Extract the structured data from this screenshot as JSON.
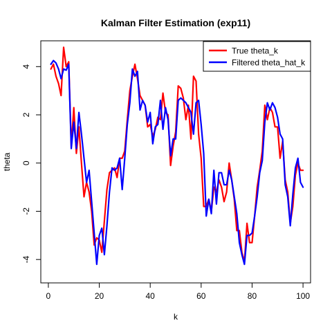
{
  "chart_data": {
    "type": "line",
    "title": "Kalman Filter Estimation (exp11)",
    "xlabel": "k",
    "ylabel": "theta",
    "xlim": [
      -2.96,
      102.96
    ],
    "ylim": [
      -4.97,
      5.07
    ],
    "x_ticks": [
      0,
      20,
      40,
      60,
      80,
      100
    ],
    "x_tick_labels": [
      "0",
      "20",
      "40",
      "60",
      "80",
      "100"
    ],
    "y_ticks": [
      -4,
      -2,
      0,
      2,
      4
    ],
    "y_tick_labels": [
      "-4",
      "-2",
      "0",
      "2",
      "4"
    ],
    "legend_position": "top-right",
    "grid": false,
    "x": [
      1,
      2,
      3,
      4,
      5,
      6,
      7,
      8,
      9,
      10,
      11,
      12,
      13,
      14,
      15,
      16,
      17,
      18,
      19,
      20,
      21,
      22,
      23,
      24,
      25,
      26,
      27,
      28,
      29,
      30,
      31,
      32,
      33,
      34,
      35,
      36,
      37,
      38,
      39,
      40,
      41,
      42,
      43,
      44,
      45,
      46,
      47,
      48,
      49,
      50,
      51,
      52,
      53,
      54,
      55,
      56,
      57,
      58,
      59,
      60,
      61,
      62,
      63,
      64,
      65,
      66,
      67,
      68,
      69,
      70,
      71,
      72,
      73,
      74,
      75,
      76,
      77,
      78,
      79,
      80,
      81,
      82,
      83,
      84,
      85,
      86,
      87,
      88,
      89,
      90,
      91,
      92,
      93,
      94,
      95,
      96,
      97,
      98,
      99,
      100
    ],
    "series": [
      {
        "name": "True theta_k",
        "color": "#ff0000",
        "values": [
          3.9,
          4.1,
          3.6,
          3.3,
          2.8,
          4.8,
          4.0,
          4.2,
          0.7,
          2.3,
          0.4,
          1.5,
          0.0,
          -1.4,
          -0.8,
          -1.2,
          -2.0,
          -3.4,
          -3.1,
          -3.2,
          -3.7,
          -2.4,
          -1.1,
          -0.4,
          -0.3,
          -0.2,
          -0.6,
          0.2,
          0.2,
          0.5,
          1.8,
          3.0,
          3.6,
          4.1,
          3.5,
          2.8,
          2.6,
          2.4,
          1.5,
          1.6,
          1.1,
          1.4,
          1.9,
          1.8,
          2.9,
          2.1,
          2.0,
          -0.1,
          0.7,
          1.3,
          3.2,
          3.1,
          2.7,
          1.8,
          2.4,
          1.0,
          3.6,
          3.4,
          1.2,
          0.2,
          -1.8,
          -1.8,
          -1.5,
          -2.0,
          -1.0,
          -1.2,
          -0.7,
          -1.0,
          -1.6,
          -1.2,
          0.0,
          -0.7,
          -1.5,
          -2.8,
          -2.8,
          -3.7,
          -4.1,
          -2.5,
          -3.3,
          -3.3,
          -2.2,
          -1.0,
          -0.3,
          0.5,
          2.4,
          1.8,
          2.3,
          2.1,
          1.5,
          1.5,
          0.2,
          0.9,
          -0.7,
          -1.2,
          -2.5,
          -1.8,
          -0.5,
          0.0,
          -0.3,
          -0.3
        ]
      },
      {
        "name": "Filtered theta_hat_k",
        "color": "#0000ff",
        "values": [
          4.1,
          4.25,
          4.15,
          3.9,
          3.5,
          3.9,
          3.85,
          4.1,
          0.6,
          1.7,
          0.6,
          2.1,
          1.2,
          0.2,
          -0.8,
          -0.3,
          -1.6,
          -2.9,
          -4.2,
          -3.0,
          -2.7,
          -3.8,
          -2.6,
          -1.2,
          -0.2,
          -0.3,
          -0.2,
          0.2,
          -1.1,
          0.2,
          1.6,
          2.5,
          3.9,
          3.6,
          3.8,
          2.2,
          2.6,
          2.4,
          1.7,
          2.1,
          0.8,
          1.5,
          1.6,
          2.6,
          1.4,
          2.3,
          1.8,
          0.3,
          1.0,
          1.0,
          2.6,
          2.7,
          2.6,
          2.5,
          2.3,
          2.1,
          1.2,
          2.5,
          2.6,
          1.6,
          0.4,
          -2.2,
          -1.5,
          -2.1,
          -0.3,
          -1.7,
          -0.4,
          -0.4,
          -0.9,
          -0.9,
          -0.3,
          -0.7,
          -1.4,
          -2.1,
          -3.3,
          -3.8,
          -4.2,
          -3.0,
          -3.0,
          -2.9,
          -2.2,
          -1.4,
          -0.4,
          0.1,
          1.7,
          2.5,
          2.2,
          2.5,
          2.3,
          1.9,
          1.2,
          1.0,
          -0.9,
          -1.4,
          -2.6,
          -1.3,
          -0.2,
          0.2,
          -0.8,
          -1.0
        ]
      }
    ]
  }
}
